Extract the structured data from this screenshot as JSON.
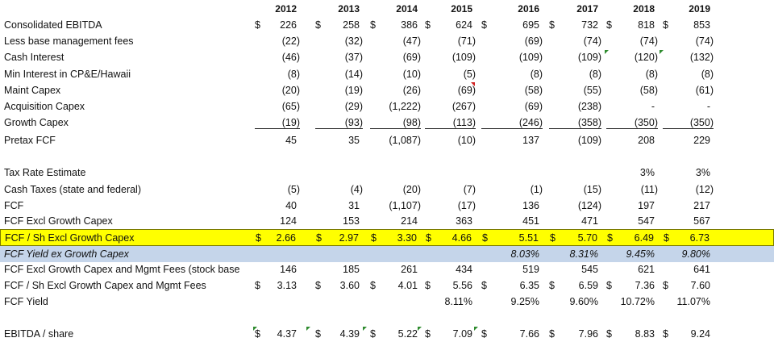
{
  "years": [
    "2012",
    "2013",
    "2014",
    "2015",
    "2016",
    "2017",
    "2018",
    "2019"
  ],
  "rows": [
    {
      "label": "Consolidated EBITDA",
      "values": [
        "226",
        "258",
        "386",
        "624",
        "695",
        "732",
        "818",
        "853"
      ],
      "dollar": true
    },
    {
      "label": "Less base management fees",
      "values": [
        "(22)",
        "(32)",
        "(47)",
        "(71)",
        "(69)",
        "(74)",
        "(74)",
        "(74)"
      ]
    },
    {
      "label": "Cash Interest",
      "values": [
        "(46)",
        "(37)",
        "(69)",
        "(109)",
        "(109)",
        "(109)",
        "(120)",
        "(132)"
      ]
    },
    {
      "label": "Min Interest in CP&E/Hawaii",
      "values": [
        "(8)",
        "(14)",
        "(10)",
        "(5)",
        "(8)",
        "(8)",
        "(8)",
        "(8)"
      ]
    },
    {
      "label": "Maint Capex",
      "values": [
        "(20)",
        "(19)",
        "(26)",
        "(69)",
        "(58)",
        "(55)",
        "(58)",
        "(61)"
      ]
    },
    {
      "label": "Acquisition Capex",
      "values": [
        "(65)",
        "(29)",
        "(1,222)",
        "(267)",
        "(69)",
        "(238)",
        "-",
        "-"
      ]
    },
    {
      "label": "Growth Capex",
      "values": [
        "(19)",
        "(93)",
        "(98)",
        "(113)",
        "(246)",
        "(358)",
        "(350)",
        "(350)"
      ]
    },
    {
      "label": "Pretax FCF",
      "values": [
        "45",
        "35",
        "(1,087)",
        "(10)",
        "137",
        "(109)",
        "208",
        "229"
      ]
    },
    {
      "label": "Tax Rate Estimate",
      "values": [
        "",
        "",
        "",
        "",
        "",
        "",
        "3%",
        "3%"
      ]
    },
    {
      "label": "Cash Taxes (state and federal)",
      "values": [
        "(5)",
        "(4)",
        "(20)",
        "(7)",
        "(1)",
        "(15)",
        "(11)",
        "(12)"
      ]
    },
    {
      "label": "FCF",
      "values": [
        "40",
        "31",
        "(1,107)",
        "(17)",
        "136",
        "(124)",
        "197",
        "217"
      ]
    },
    {
      "label": "FCF Excl Growth Capex",
      "values": [
        "124",
        "153",
        "214",
        "363",
        "451",
        "471",
        "547",
        "567"
      ]
    },
    {
      "label": "FCF / Sh Excl Growth Capex",
      "values": [
        "2.66",
        "2.97",
        "3.30",
        "4.66",
        "5.51",
        "5.70",
        "6.49",
        "6.73"
      ],
      "dollar": true
    },
    {
      "label": "FCF Yield ex Growth Capex",
      "values": [
        "",
        "",
        "",
        "",
        "8.03%",
        "8.31%",
        "9.45%",
        "9.80%"
      ]
    },
    {
      "label": "FCF Excl Growth Capex and Mgmt Fees (stock base",
      "values": [
        "146",
        "185",
        "261",
        "434",
        "519",
        "545",
        "621",
        "641"
      ]
    },
    {
      "label": "FCF / Sh Excl Growth Capex and Mgmt Fees",
      "values": [
        "3.13",
        "3.60",
        "4.01",
        "5.56",
        "6.35",
        "6.59",
        "7.36",
        "7.60"
      ],
      "dollar": true
    },
    {
      "label": "FCF Yield",
      "values": [
        "",
        "",
        "",
        "8.11%",
        "9.25%",
        "9.60%",
        "10.72%",
        "11.07%"
      ]
    },
    {
      "label": "EBITDA / share",
      "values": [
        "4.37",
        "4.39",
        "5.22",
        "7.09",
        "7.66",
        "7.96",
        "8.83",
        "9.24"
      ],
      "dollar": true
    }
  ],
  "currency_symbol": "$",
  "colors": {
    "highlight_yellow": "#ffff00",
    "highlight_blue": "#c5d5ea",
    "comment_marker": "#2e8b2e",
    "error_marker": "#d02020"
  }
}
